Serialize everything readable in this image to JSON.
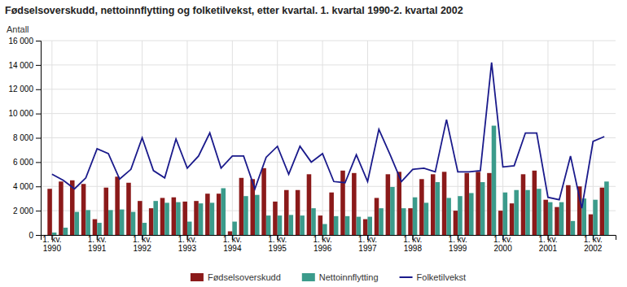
{
  "chart_data": {
    "type": "bar",
    "title": "Fødselsoverskudd, nettoinnflytting og folketilvekst, etter kvartal. 1. kvartal 1990-2. kvartal 2002",
    "y_label": "Antall",
    "categories": [
      "1. kv.\n1990",
      null,
      null,
      null,
      "1. kv.\n1991",
      null,
      null,
      null,
      "1. kv.\n1992",
      null,
      null,
      null,
      "1. kv.\n1993",
      null,
      null,
      null,
      "1. kv.\n1994",
      null,
      null,
      null,
      "1. kv.\n1995",
      null,
      null,
      null,
      "1. kv.\n1996",
      null,
      null,
      null,
      "1. kv.\n1997",
      null,
      null,
      null,
      "1. kv.\n1998",
      null,
      null,
      null,
      "1. kv.\n1999",
      null,
      null,
      null,
      "1. kv.\n2000",
      null,
      null,
      null,
      "1. kv.\n2001",
      null,
      null,
      null,
      "1. kv.\n2002",
      null
    ],
    "series": [
      {
        "name": "Fødselsoverskudd",
        "type": "bar",
        "color": "#8B1A1A",
        "values": [
          3800,
          4400,
          4500,
          4200,
          1300,
          3900,
          4800,
          4300,
          2800,
          2200,
          3050,
          3100,
          2750,
          2800,
          3400,
          3400,
          300,
          4700,
          4600,
          5500,
          2750,
          3700,
          3700,
          5000,
          1600,
          3500,
          5300,
          5100,
          1300,
          3050,
          5000,
          5200,
          2200,
          4600,
          5000,
          5200,
          2000,
          5100,
          5200,
          5100,
          2000,
          2600,
          5000,
          5300,
          2900,
          2300,
          4100,
          4000,
          1700,
          3900
        ]
      },
      {
        "name": "Nettoinnflytting",
        "type": "bar",
        "color": "#3B9B8B",
        "values": [
          200,
          600,
          1900,
          2050,
          1000,
          2050,
          2100,
          1900,
          1000,
          2800,
          2650,
          2700,
          1100,
          2600,
          2650,
          3850,
          1100,
          3200,
          3300,
          1600,
          1600,
          1650,
          1600,
          2200,
          900,
          1550,
          1550,
          1500,
          1500,
          2200,
          3950,
          2200,
          3100,
          2650,
          4350,
          3050,
          3200,
          3450,
          4350,
          9000,
          3500,
          3700,
          3700,
          3800,
          2700,
          2700,
          1150,
          3000,
          2900,
          4400
        ]
      },
      {
        "name": "Folketilvekst",
        "type": "line",
        "color": "#1A1A8B",
        "values": [
          5000,
          4500,
          3800,
          4700,
          7100,
          6700,
          4600,
          5400,
          8000,
          5300,
          4700,
          7900,
          5500,
          6500,
          8400,
          5500,
          6500,
          6500,
          3800,
          6400,
          7300,
          5000,
          7300,
          6000,
          6700,
          4400,
          4300,
          6600,
          4400,
          8700,
          6600,
          4400,
          5400,
          5500,
          5200,
          9500,
          5200,
          5200,
          5300,
          14200,
          5600,
          5700,
          8400,
          8400,
          3100,
          2900,
          6500,
          2200,
          7700,
          8100
        ]
      }
    ],
    "ylim": [
      0,
      16000
    ],
    "yticks": [
      0,
      {
        "value": 2000,
        "label": "2 000"
      },
      {
        "value": 4000,
        "label": "4 000"
      },
      {
        "value": 6000,
        "label": "6 000"
      },
      {
        "value": 8000,
        "label": "8 000"
      },
      {
        "value": 10000,
        "label": "10 000"
      },
      {
        "value": 12000,
        "label": "12 000"
      },
      {
        "value": 14000,
        "label": "14 000"
      },
      {
        "value": 16000,
        "label": "16 000"
      }
    ],
    "grid": true,
    "legend": "bottom"
  }
}
